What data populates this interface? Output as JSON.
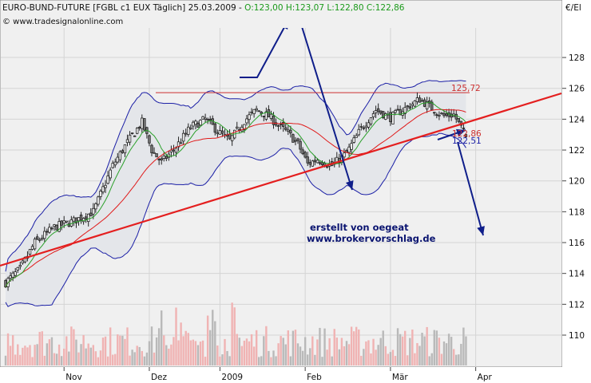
{
  "header": {
    "instrument": "EURO-BUND-FUTURE [FGBL c1 EUX  Täglich] 25.03.2009 - ",
    "ohlc": "O:123,00 H:123,07 L:122,80 C:122,86",
    "copyright": "© www.tradesignalonline.com"
  },
  "currency": "€/El",
  "annotations": {
    "line1": "erstellt von oegeat",
    "line2": "www.brokervorschlag.de"
  },
  "price_tags": {
    "resistance": "125,72",
    "close": "122,86",
    "band": "122,51"
  },
  "colors": {
    "background": "#ffffff",
    "plot_background": "#f0f0f0",
    "band": "#e4e6ea",
    "bollinger": "#1b1fa6",
    "ma_fast": "#2aa02a",
    "ma_slow": "#e01a1a",
    "trendline": "#e41f1f",
    "resistance": "#cc3030",
    "arrows": "#0f1e8a",
    "candle_up": "#ffffff",
    "candle_down": "#7a7a7a",
    "volume_up": "#f0b3b3",
    "volume_down": "#b9b9b9"
  },
  "chart_data": {
    "type": "candlestick",
    "title": "EURO-BUND-FUTURE [FGBL c1 EUX  Täglich] 25.03.2009",
    "y_ticks": [
      110,
      112,
      114,
      116,
      118,
      120,
      122,
      124,
      126,
      128
    ],
    "ylim": [
      108.8,
      129.6
    ],
    "x_labels": [
      "Nov",
      "Dez",
      "2009",
      "Feb",
      "Mär",
      "Apr"
    ],
    "grid": true,
    "close_path": [
      [
        0,
        113.4
      ],
      [
        6,
        114.3
      ],
      [
        12,
        116.0
      ],
      [
        20,
        117.0
      ],
      [
        28,
        117.4
      ],
      [
        36,
        118.0
      ],
      [
        44,
        121.0
      ],
      [
        50,
        122.5
      ],
      [
        56,
        123.8
      ],
      [
        60,
        122.0
      ],
      [
        64,
        121.2
      ],
      [
        70,
        122.2
      ],
      [
        76,
        123.5
      ],
      [
        82,
        124.0
      ],
      [
        88,
        123.1
      ],
      [
        92,
        122.6
      ],
      [
        98,
        123.9
      ],
      [
        103,
        124.6
      ],
      [
        108,
        124.2
      ],
      [
        112,
        123.6
      ],
      [
        116,
        123.1
      ],
      [
        120,
        122.4
      ],
      [
        124,
        121.1
      ],
      [
        128,
        121.4
      ],
      [
        134,
        121.0
      ],
      [
        140,
        121.8
      ],
      [
        146,
        123.4
      ],
      [
        152,
        124.6
      ],
      [
        158,
        124.1
      ],
      [
        164,
        124.7
      ],
      [
        170,
        125.3
      ],
      [
        176,
        124.6
      ],
      [
        180,
        124.2
      ],
      [
        184,
        124.3
      ],
      [
        189,
        122.9
      ]
    ],
    "series": [
      {
        "name": "EURO-BUND-FUTURE",
        "type": "candlestick",
        "last": 122.86
      },
      {
        "type": "line",
        "color": "green",
        "role": "moving average (fast)"
      },
      {
        "type": "line",
        "color": "red",
        "role": "moving average (slow)"
      },
      {
        "type": "band",
        "color": "blue",
        "role": "bollinger bands"
      },
      {
        "type": "volume",
        "role": "volume bars"
      }
    ],
    "resistance_level": 125.72,
    "trendline": {
      "start": [
        0,
        114.4
      ],
      "end": [
        189,
        123.0
      ]
    },
    "last_close": 122.86,
    "lower_band_last": 122.51
  }
}
